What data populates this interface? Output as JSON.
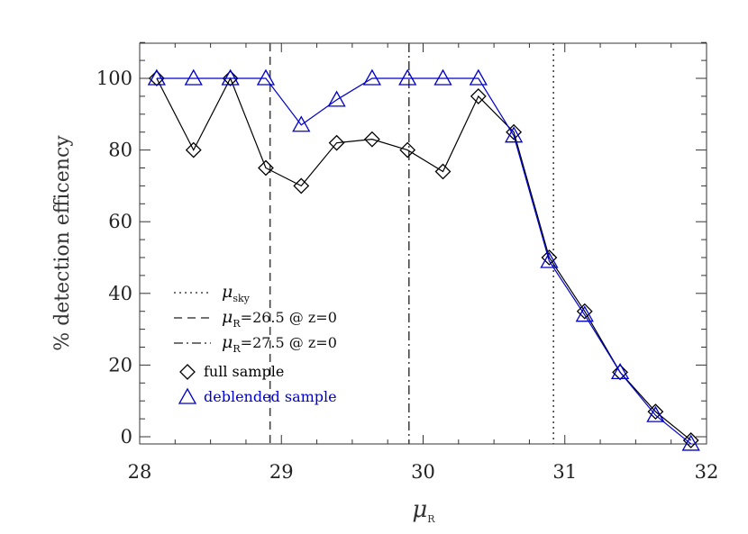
{
  "chart_data": {
    "type": "line",
    "xlabel": {
      "symbol": "μ",
      "sub": "R"
    },
    "ylabel": "% detection efficency",
    "xlim": [
      28,
      32
    ],
    "ylim": [
      -2,
      110
    ],
    "xticks": [
      28,
      29,
      30,
      31,
      32
    ],
    "yticks": [
      0,
      20,
      40,
      60,
      80,
      100
    ],
    "xtick_labels": [
      "28",
      "29",
      "30",
      "31",
      "32"
    ],
    "ytick_labels": [
      "0",
      "20",
      "40",
      "60",
      "80",
      "100"
    ],
    "series": [
      {
        "name": "full sample",
        "color": "#000000",
        "marker": "diamond",
        "x": [
          28.12,
          28.38,
          28.64,
          28.89,
          29.14,
          29.39,
          29.64,
          29.89,
          30.14,
          30.39,
          30.64,
          30.89,
          31.14,
          31.39,
          31.64,
          31.89
        ],
        "y": [
          100,
          80,
          100,
          75,
          70,
          82,
          83,
          80,
          74,
          95,
          85,
          50,
          35,
          18,
          7,
          -1
        ]
      },
      {
        "name": "deblended sample",
        "color": "#0000cc",
        "marker": "triangle",
        "x": [
          28.12,
          28.38,
          28.64,
          28.89,
          29.14,
          29.39,
          29.64,
          29.89,
          30.14,
          30.39,
          30.64,
          30.89,
          31.14,
          31.39,
          31.64,
          31.89
        ],
        "y": [
          100,
          100,
          100,
          100,
          87,
          94,
          100,
          100,
          100,
          100,
          84,
          49,
          34,
          18,
          6,
          -2
        ]
      }
    ],
    "reference_lines": [
      {
        "x": 30.92,
        "style": "dotted",
        "label": {
          "symbol": "μ",
          "sub": "sky",
          "rest": ""
        }
      },
      {
        "x": 28.92,
        "style": "dashed",
        "label": {
          "symbol": "μ",
          "sub": "R",
          "rest": "=26.5 @ z=0"
        }
      },
      {
        "x": 29.9,
        "style": "dashdot",
        "label": {
          "symbol": "μ",
          "sub": "R",
          "rest": "=27.5 @ z=0"
        }
      }
    ],
    "legend": {
      "position": "bottom-left"
    }
  }
}
